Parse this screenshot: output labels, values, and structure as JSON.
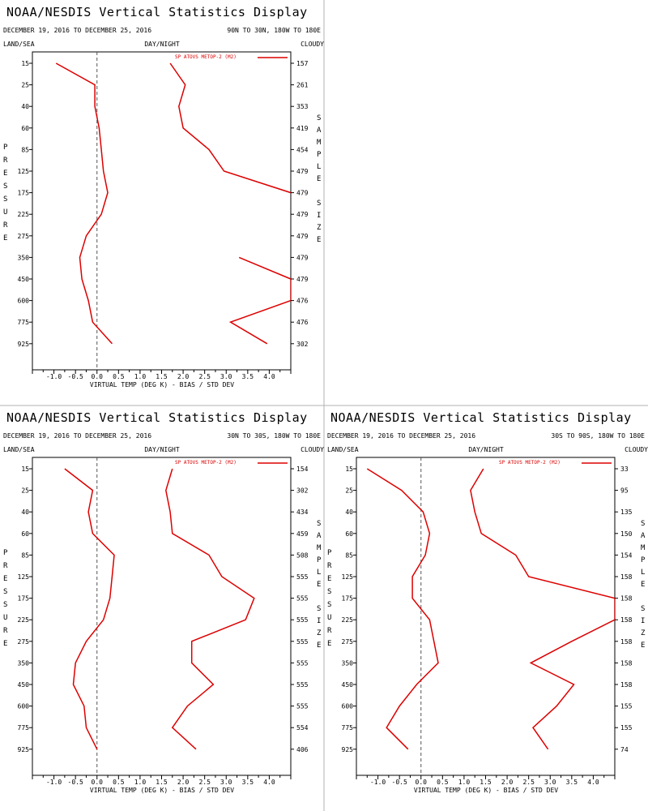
{
  "page": {
    "title": "NOAA/NESDIS Vertical Statistics Display",
    "date_range": "DECEMBER 19, 2016 TO DECEMBER 25, 2016",
    "left_header": "LAND/SEA",
    "center_header": "DAY/NIGHT",
    "right_header": "CLOUDY",
    "y_axis_label": "PRESSURE",
    "right_axis_label": "SAMPLE SIZE",
    "x_axis_label": "VIRTUAL TEMP (DEG K) - BIAS / STD DEV",
    "legend_label": "SP ATOVS METOP-2 (M2)",
    "line_color": "#dd0000"
  },
  "chart_data": [
    {
      "type": "line",
      "region": "90N TO 30N, 180W TO 180E",
      "pressure_levels": [
        15,
        25,
        40,
        60,
        85,
        125,
        175,
        225,
        275,
        350,
        450,
        600,
        775,
        925
      ],
      "sample_size": [
        "157",
        "261",
        "353",
        "419",
        "454",
        "479",
        "479",
        "479",
        "479",
        "479",
        "479",
        "476",
        "476",
        "302"
      ],
      "xlim": [
        -1.5,
        4.5
      ],
      "xticks": [
        -1.0,
        -0.5,
        0.0,
        0.5,
        1.0,
        1.5,
        2.0,
        2.5,
        3.0,
        3.5,
        4.0
      ],
      "series": [
        {
          "values": [
            -0.95,
            -0.05,
            -0.05,
            0.05,
            0.1,
            0.15,
            0.25,
            0.1,
            -0.25,
            -0.4,
            -0.35,
            -0.2,
            -0.1,
            0.35
          ]
        },
        {
          "values": [
            1.7,
            2.05,
            1.9,
            2.0,
            2.6,
            2.95,
            4.5,
            null,
            null,
            3.3,
            4.5,
            4.5,
            3.1,
            3.95
          ]
        }
      ]
    },
    {
      "type": "line",
      "region": "30N TO 30S, 180W TO 180E",
      "pressure_levels": [
        15,
        25,
        40,
        60,
        85,
        125,
        175,
        225,
        275,
        350,
        450,
        600,
        775,
        925
      ],
      "sample_size": [
        "154",
        "302",
        "434",
        "459",
        "508",
        "555",
        "555",
        "555",
        "555",
        "555",
        "555",
        "555",
        "554",
        "406"
      ],
      "xlim": [
        -1.5,
        4.5
      ],
      "xticks": [
        -1.0,
        -0.5,
        0.0,
        0.5,
        1.0,
        1.5,
        2.0,
        2.5,
        3.0,
        3.5,
        4.0
      ],
      "series": [
        {
          "values": [
            -0.75,
            -0.1,
            -0.2,
            -0.1,
            0.4,
            0.35,
            0.3,
            0.15,
            -0.25,
            -0.5,
            -0.55,
            -0.3,
            -0.25,
            0.0
          ]
        },
        {
          "values": [
            1.75,
            1.6,
            1.7,
            1.75,
            2.6,
            2.9,
            3.65,
            3.45,
            2.2,
            2.2,
            2.7,
            2.1,
            1.75,
            2.3
          ]
        }
      ]
    },
    {
      "type": "line",
      "region": "30S TO 90S, 180W TO 180E",
      "pressure_levels": [
        15,
        25,
        40,
        60,
        85,
        125,
        175,
        225,
        275,
        350,
        450,
        600,
        775,
        925
      ],
      "sample_size": [
        "33",
        "95",
        "135",
        "150",
        "154",
        "158",
        "158",
        "158",
        "158",
        "158",
        "158",
        "155",
        "155",
        "74"
      ],
      "xlim": [
        -1.5,
        4.5
      ],
      "xticks": [
        -1.0,
        -0.5,
        0.0,
        0.5,
        1.0,
        1.5,
        2.0,
        2.5,
        3.0,
        3.5,
        4.0
      ],
      "series": [
        {
          "values": [
            -1.25,
            -0.45,
            0.05,
            0.2,
            0.1,
            -0.2,
            -0.2,
            0.2,
            0.3,
            0.4,
            -0.1,
            -0.5,
            -0.8,
            -0.3
          ]
        },
        {
          "values": [
            1.45,
            1.15,
            1.25,
            1.4,
            2.2,
            2.5,
            4.5,
            4.5,
            3.5,
            2.55,
            3.55,
            3.15,
            2.6,
            2.95
          ]
        }
      ]
    }
  ]
}
